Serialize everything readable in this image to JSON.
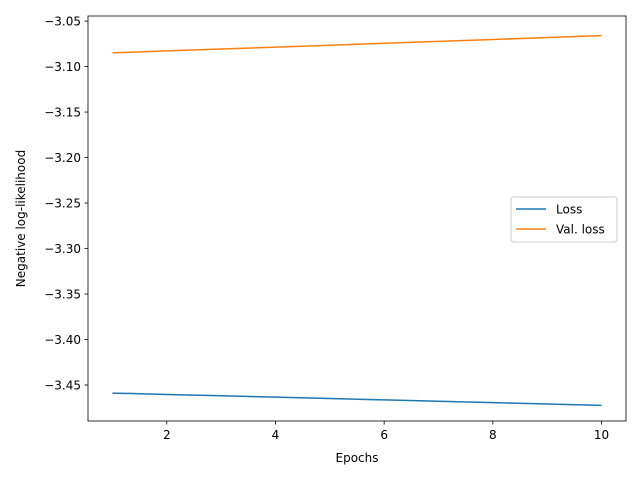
{
  "chart_data": {
    "type": "line",
    "title": "",
    "xlabel": "Epochs",
    "ylabel": "Negative log-likelihood",
    "x": [
      1,
      2,
      3,
      4,
      5,
      6,
      7,
      8,
      9,
      10
    ],
    "xlim": [
      0.55,
      10.45
    ],
    "ylim": [
      -3.4896,
      -3.0444
    ],
    "xticks": [
      2,
      4,
      6,
      8,
      10
    ],
    "xtick_labels": [
      "2",
      "4",
      "6",
      "8",
      "10"
    ],
    "yticks": [
      -3.45,
      -3.4,
      -3.35,
      -3.3,
      -3.25,
      -3.2,
      -3.15,
      -3.1,
      -3.05
    ],
    "ytick_labels": [
      "−3.45",
      "−3.40",
      "−3.35",
      "−3.30",
      "−3.25",
      "−3.20",
      "−3.15",
      "−3.10",
      "−3.05"
    ],
    "grid": false,
    "legend_position": "center-right",
    "series": [
      {
        "name": "Loss",
        "color": "#1f77b4",
        "values": [
          -3.4589,
          -3.4604,
          -3.4619,
          -3.4634,
          -3.4649,
          -3.4664,
          -3.4679,
          -3.4694,
          -3.4709,
          -3.4724
        ]
      },
      {
        "name": "Val. loss",
        "color": "#ff7f0e",
        "values": [
          -3.0849,
          -3.0828,
          -3.0807,
          -3.0786,
          -3.0765,
          -3.0744,
          -3.0723,
          -3.0702,
          -3.0681,
          -3.066
        ]
      }
    ]
  }
}
